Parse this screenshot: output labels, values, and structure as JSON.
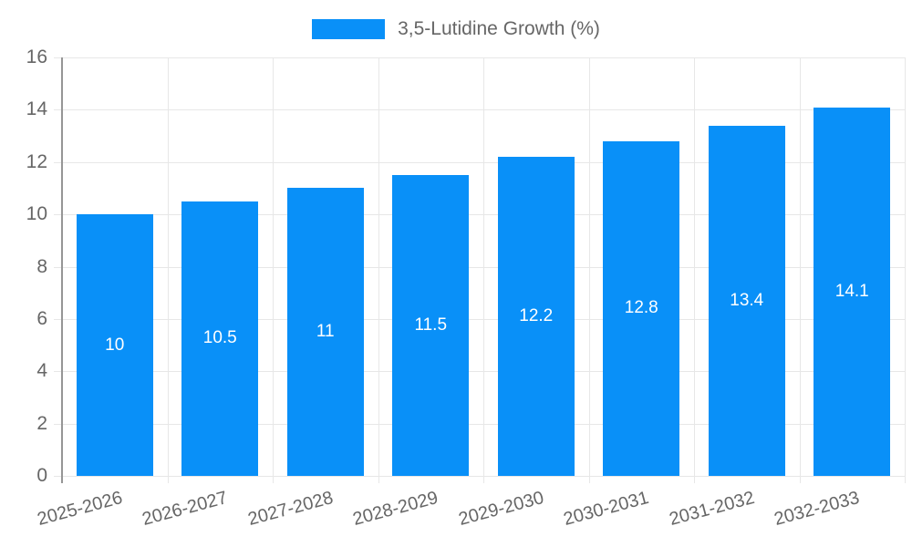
{
  "chart_data": {
    "type": "bar",
    "title": "",
    "xlabel": "",
    "ylabel": "",
    "categories": [
      "2025-2026",
      "2026-2027",
      "2027-2028",
      "2028-2029",
      "2029-2030",
      "2030-2031",
      "2031-2032",
      "2032-2033"
    ],
    "series": [
      {
        "name": "3,5-Lutidine Growth (%)",
        "values": [
          10,
          10.5,
          11,
          11.5,
          12.2,
          12.8,
          13.4,
          14.1
        ],
        "value_labels": [
          "10",
          "10.5",
          "11",
          "11.5",
          "12.2",
          "12.8",
          "13.4",
          "14.1"
        ]
      }
    ],
    "ylim": [
      0,
      16
    ],
    "yticks": [
      0,
      2,
      4,
      6,
      8,
      10,
      12,
      14,
      16
    ],
    "ytick_labels": [
      "0",
      "2",
      "4",
      "6",
      "8",
      "10",
      "12",
      "14",
      "16"
    ],
    "grid": true,
    "legend_position": "top",
    "colors": {
      "bar": "#0990f8",
      "grid": "#e7e7e7",
      "axis_line": "#969696",
      "tick_label": "#666666",
      "value_label": "#ffffff",
      "background": "#ffffff"
    }
  }
}
